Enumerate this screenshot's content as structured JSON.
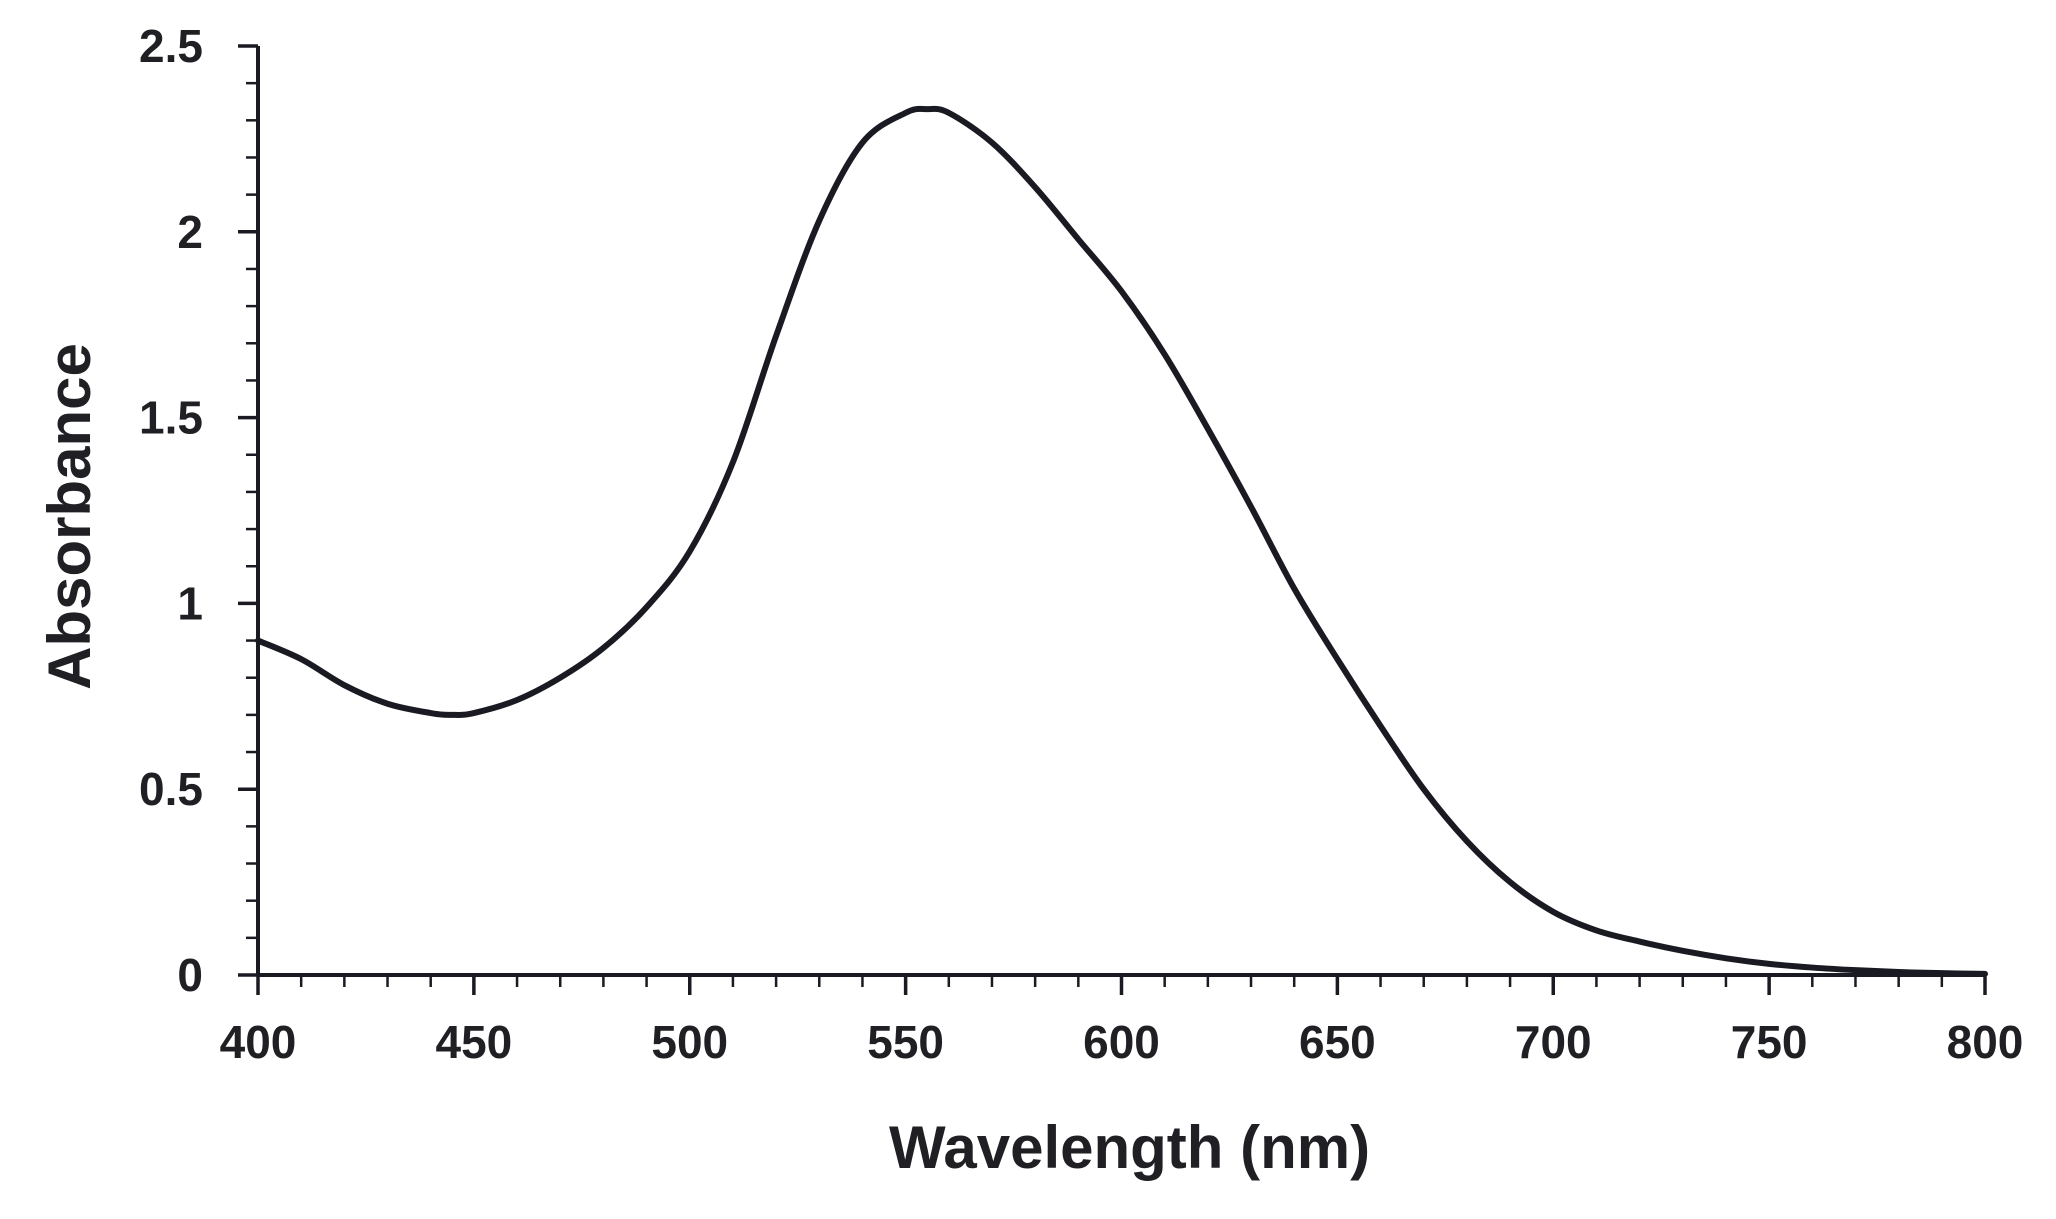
{
  "chart_data": {
    "type": "line",
    "title": "",
    "xlabel": "Wavelength (nm)",
    "ylabel": "Absorbance",
    "xlim": [
      400,
      800
    ],
    "ylim": [
      0,
      2.5
    ],
    "x_major_ticks": [
      400,
      450,
      500,
      550,
      600,
      650,
      700,
      750,
      800
    ],
    "x_tick_labels": [
      "400",
      "450",
      "500",
      "550",
      "600",
      "650",
      "700",
      "750",
      "800"
    ],
    "x_minor_step": 10,
    "y_major_ticks": [
      0,
      0.5,
      1,
      1.5,
      2,
      2.5
    ],
    "y_tick_labels": [
      "0",
      "0.5",
      "1",
      "1.5",
      "2",
      "2.5"
    ],
    "y_minor_step": 0.1,
    "grid": false,
    "legend": "none",
    "line_color": "#1a1a22",
    "series": [
      {
        "name": "Absorbance",
        "x": [
          400,
          410,
          420,
          430,
          440,
          445,
          450,
          460,
          470,
          480,
          490,
          500,
          510,
          520,
          530,
          540,
          550,
          555,
          560,
          570,
          580,
          590,
          600,
          610,
          620,
          630,
          640,
          650,
          660,
          670,
          680,
          690,
          700,
          710,
          720,
          730,
          740,
          750,
          760,
          770,
          780,
          790,
          800
        ],
        "y": [
          0.9,
          0.85,
          0.78,
          0.73,
          0.705,
          0.7,
          0.705,
          0.74,
          0.8,
          0.88,
          0.99,
          1.14,
          1.38,
          1.72,
          2.03,
          2.24,
          2.32,
          2.33,
          2.32,
          2.24,
          2.12,
          1.98,
          1.84,
          1.67,
          1.47,
          1.26,
          1.04,
          0.85,
          0.67,
          0.5,
          0.36,
          0.25,
          0.17,
          0.12,
          0.09,
          0.065,
          0.045,
          0.03,
          0.02,
          0.013,
          0.008,
          0.005,
          0.003
        ]
      }
    ]
  }
}
